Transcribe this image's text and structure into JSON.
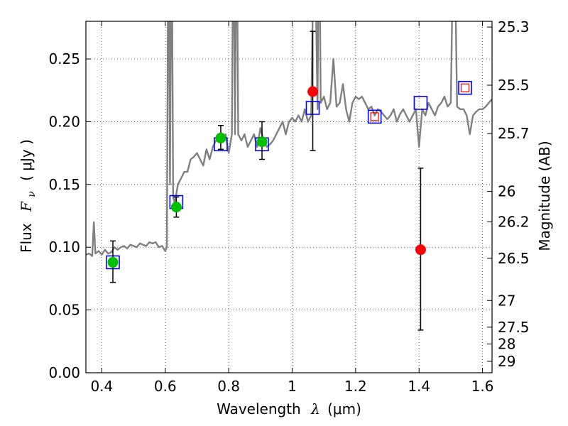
{
  "chart_data": {
    "type": "scatter",
    "title": "",
    "xlabel_prefix": "Wavelength",
    "xlabel_symbol": "λ",
    "xlabel_unit": "(μm)",
    "ylabel_prefix": "Flux",
    "ylabel_symbol": "F",
    "ylabel_subscript": "ν",
    "ylabel_unit": "( μJy )",
    "y2label": "Magnitude (AB)",
    "xlim": [
      0.35,
      1.63
    ],
    "ylim": [
      0.0,
      0.28
    ],
    "xticks": [
      0.4,
      0.6,
      0.8,
      1.0,
      1.2,
      1.4,
      1.6
    ],
    "xtick_labels": [
      "0.4",
      "0.6",
      "0.8",
      "1",
      "1.2",
      "1.4",
      "1.6"
    ],
    "yticks": [
      0.0,
      0.05,
      0.1,
      0.15,
      0.2,
      0.25
    ],
    "ytick_labels": [
      "0.00",
      "0.05",
      "0.10",
      "0.15",
      "0.20",
      "0.25"
    ],
    "y2ticks": [
      {
        "label": "25.3",
        "mag": 25.3
      },
      {
        "label": "25.5",
        "mag": 25.5
      },
      {
        "label": "25.7",
        "mag": 25.7
      },
      {
        "label": "26",
        "mag": 26.0
      },
      {
        "label": "26.2",
        "mag": 26.2
      },
      {
        "label": "26.5",
        "mag": 26.5
      },
      {
        "label": "27",
        "mag": 27.0
      },
      {
        "label": "27.5",
        "mag": 27.5
      },
      {
        "label": "28",
        "mag": 28.0
      },
      {
        "label": "29",
        "mag": 29.0
      }
    ],
    "grid": true,
    "colors": {
      "model": "#808080",
      "model_points": "#0000ff",
      "green_points": "#00c000",
      "red_points": "#ff0000",
      "errorbars": "#000000",
      "open_squares": "#ff0000"
    },
    "model_spectrum": {
      "x": [
        0.35,
        0.36,
        0.37,
        0.375,
        0.38,
        0.39,
        0.4,
        0.41,
        0.42,
        0.43,
        0.44,
        0.45,
        0.46,
        0.47,
        0.48,
        0.49,
        0.5,
        0.51,
        0.52,
        0.53,
        0.54,
        0.55,
        0.56,
        0.57,
        0.58,
        0.59,
        0.6,
        0.605,
        0.61,
        0.615,
        0.62,
        0.625,
        0.63,
        0.64,
        0.65,
        0.66,
        0.67,
        0.68,
        0.69,
        0.7,
        0.71,
        0.72,
        0.73,
        0.74,
        0.75,
        0.76,
        0.77,
        0.78,
        0.79,
        0.8,
        0.81,
        0.815,
        0.82,
        0.825,
        0.83,
        0.84,
        0.85,
        0.86,
        0.87,
        0.88,
        0.89,
        0.9,
        0.91,
        0.92,
        0.93,
        0.94,
        0.95,
        0.96,
        0.97,
        0.98,
        0.99,
        1.0,
        1.01,
        1.02,
        1.03,
        1.04,
        1.05,
        1.06,
        1.07,
        1.08,
        1.085,
        1.09,
        1.1,
        1.11,
        1.12,
        1.13,
        1.14,
        1.15,
        1.16,
        1.17,
        1.18,
        1.19,
        1.2,
        1.21,
        1.22,
        1.23,
        1.24,
        1.25,
        1.26,
        1.27,
        1.28,
        1.29,
        1.3,
        1.31,
        1.32,
        1.33,
        1.34,
        1.35,
        1.36,
        1.37,
        1.38,
        1.39,
        1.4,
        1.41,
        1.42,
        1.43,
        1.44,
        1.45,
        1.46,
        1.47,
        1.48,
        1.49,
        1.5,
        1.51,
        1.52,
        1.53,
        1.54,
        1.55,
        1.56,
        1.57,
        1.58,
        1.59,
        1.6,
        1.61,
        1.62,
        1.63
      ],
      "y": [
        0.094,
        0.095,
        0.093,
        0.12,
        0.095,
        0.097,
        0.094,
        0.098,
        0.095,
        0.096,
        0.1,
        0.098,
        0.1,
        0.101,
        0.099,
        0.102,
        0.101,
        0.1,
        0.103,
        0.102,
        0.101,
        0.104,
        0.103,
        0.104,
        0.1,
        0.101,
        0.097,
        0.1,
        0.38,
        0.15,
        0.38,
        0.14,
        0.135,
        0.15,
        0.155,
        0.16,
        0.16,
        0.17,
        0.172,
        0.175,
        0.17,
        0.165,
        0.178,
        0.17,
        0.18,
        0.185,
        0.19,
        0.185,
        0.19,
        0.175,
        0.19,
        0.38,
        0.19,
        0.38,
        0.19,
        0.185,
        0.19,
        0.18,
        0.185,
        0.19,
        0.18,
        0.195,
        0.185,
        0.18,
        0.182,
        0.185,
        0.19,
        0.195,
        0.2,
        0.19,
        0.2,
        0.203,
        0.2,
        0.205,
        0.2,
        0.21,
        0.2,
        0.205,
        0.38,
        0.21,
        0.38,
        0.215,
        0.22,
        0.21,
        0.215,
        0.25,
        0.212,
        0.215,
        0.23,
        0.21,
        0.2,
        0.215,
        0.22,
        0.218,
        0.22,
        0.215,
        0.21,
        0.212,
        0.205,
        0.21,
        0.208,
        0.205,
        0.202,
        0.205,
        0.21,
        0.2,
        0.206,
        0.21,
        0.205,
        0.2,
        0.205,
        0.21,
        0.18,
        0.21,
        0.205,
        0.215,
        0.21,
        0.205,
        0.212,
        0.215,
        0.22,
        0.212,
        0.215,
        0.38,
        0.212,
        0.21,
        0.21,
        0.205,
        0.19,
        0.205,
        0.208,
        0.21,
        0.21,
        0.212,
        0.215,
        0.218
      ]
    },
    "model_points": [
      {
        "x": 0.435,
        "y": 0.088
      },
      {
        "x": 0.635,
        "y": 0.136
      },
      {
        "x": 0.775,
        "y": 0.182
      },
      {
        "x": 0.905,
        "y": 0.182
      },
      {
        "x": 1.065,
        "y": 0.211
      },
      {
        "x": 1.26,
        "y": 0.204
      },
      {
        "x": 1.405,
        "y": 0.215
      },
      {
        "x": 1.545,
        "y": 0.227
      }
    ],
    "green_points": [
      {
        "x": 0.435,
        "y": 0.088,
        "yerr_low": 0.072,
        "yerr_high": 0.105
      },
      {
        "x": 0.635,
        "y": 0.132,
        "yerr_low": 0.124,
        "yerr_high": 0.14
      },
      {
        "x": 0.775,
        "y": 0.187,
        "yerr_low": 0.178,
        "yerr_high": 0.197
      },
      {
        "x": 0.905,
        "y": 0.184,
        "yerr_low": 0.17,
        "yerr_high": 0.2
      }
    ],
    "red_points": [
      {
        "x": 1.065,
        "y": 0.224,
        "yerr_low": 0.177,
        "yerr_high": 0.272
      },
      {
        "x": 1.405,
        "y": 0.098,
        "yerr_low": 0.034,
        "yerr_high": 0.163
      }
    ],
    "open_red_squares": [
      {
        "x": 1.26,
        "y": 0.204
      },
      {
        "x": 1.545,
        "y": 0.227
      }
    ]
  }
}
